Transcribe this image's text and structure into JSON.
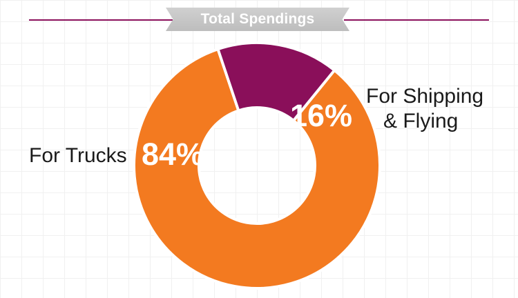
{
  "chart_data": {
    "type": "pie",
    "style": "donut",
    "title": "Total Spendings",
    "categories": [
      "For Trucks",
      "For Shipping & Flying"
    ],
    "label_lines": [
      [
        "For Trucks"
      ],
      [
        "For Shipping",
        "& Flying"
      ]
    ],
    "values": [
      84,
      16
    ],
    "value_labels": [
      "84%",
      "16%"
    ],
    "colors": [
      "#f37a20",
      "#8a0f5a"
    ]
  }
}
